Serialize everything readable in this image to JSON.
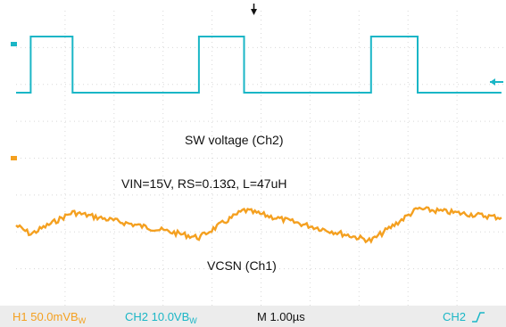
{
  "chart_data": {
    "type": "line",
    "title": "",
    "annotations": {
      "sw_label": "SW voltage (Ch2)",
      "cond_label": "VIN=15V, RS=0.13Ω, L=47uH",
      "vcsn_label": "VCSN (Ch1)"
    },
    "grid": true,
    "time_per_div_us": 1.0,
    "series": [
      {
        "name": "SW voltage (Ch2)",
        "color": "#1ab6c6",
        "x": [
          0.0,
          0.22,
          0.22,
          0.85,
          0.85,
          2.75,
          2.75,
          3.43,
          3.43,
          5.34,
          5.34,
          6.04,
          6.04,
          7.3
        ],
        "y": [
          0.0,
          0.0,
          15.0,
          15.0,
          0.0,
          0.0,
          15.0,
          15.0,
          0.0,
          0.0,
          15.0,
          15.0,
          0.0,
          0.0
        ]
      },
      {
        "name": "VCSN (Ch1)",
        "color": "#f4a020",
        "x": [
          0.0,
          0.22,
          0.85,
          2.75,
          3.43,
          5.34,
          6.04,
          7.3
        ],
        "y": [
          0.0,
          -20.0,
          30.0,
          -28.0,
          35.0,
          -35.0,
          38.0,
          18.0
        ]
      }
    ],
    "status_bar": {
      "ch1_text": "H1  50.0mVB",
      "ch1_sub": "W",
      "ch2_text": "CH2  10.0VB",
      "ch2_sub": "W",
      "timebase_text": "M 1.00µs",
      "trigger_text": "CH2"
    }
  }
}
